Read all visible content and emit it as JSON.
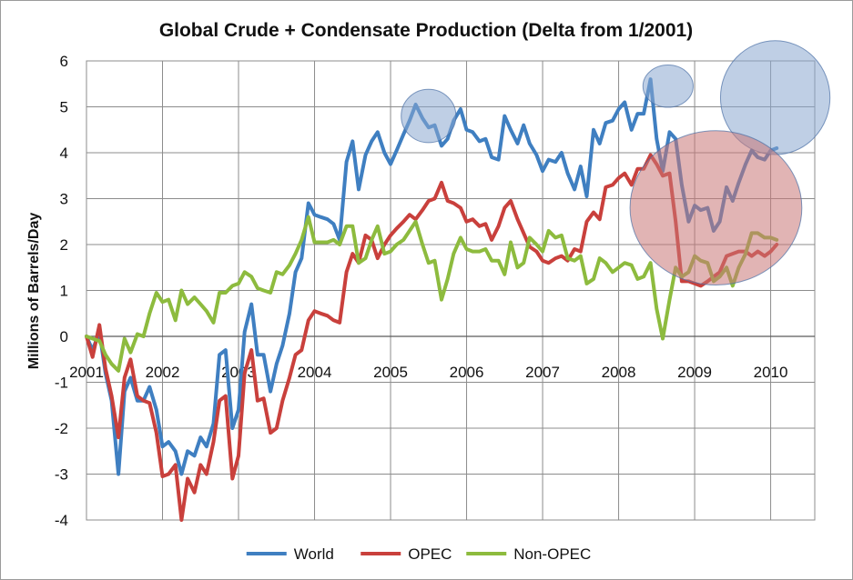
{
  "chart_data": {
    "type": "line",
    "title": "Global Crude + Condensate Production (Delta from 1/2001)",
    "ylabel": "Millions of Barrels/Day",
    "xlabel": "",
    "ylim": [
      -4,
      6
    ],
    "yticks": [
      -4,
      -3,
      -2,
      -1,
      0,
      1,
      2,
      3,
      4,
      5,
      6
    ],
    "xlim": [
      2001,
      2010.58
    ],
    "xticks": [
      "2001",
      "2002",
      "2003",
      "2004",
      "2005",
      "2006",
      "2007",
      "2008",
      "2009",
      "2010"
    ],
    "grid": true,
    "legend": "bottom",
    "series": [
      {
        "name": "World",
        "color": "#3f7fc1",
        "x": [
          2001.0,
          2001.08,
          2001.17,
          2001.25,
          2001.33,
          2001.42,
          2001.5,
          2001.58,
          2001.67,
          2001.75,
          2001.83,
          2001.92,
          2002.0,
          2002.08,
          2002.17,
          2002.25,
          2002.33,
          2002.42,
          2002.5,
          2002.58,
          2002.67,
          2002.75,
          2002.83,
          2002.92,
          2003.0,
          2003.08,
          2003.17,
          2003.25,
          2003.33,
          2003.42,
          2003.5,
          2003.58,
          2003.67,
          2003.75,
          2003.83,
          2003.92,
          2004.0,
          2004.08,
          2004.17,
          2004.25,
          2004.33,
          2004.42,
          2004.5,
          2004.58,
          2004.67,
          2004.75,
          2004.83,
          2004.92,
          2005.0,
          2005.08,
          2005.17,
          2005.25,
          2005.33,
          2005.42,
          2005.5,
          2005.58,
          2005.67,
          2005.75,
          2005.83,
          2005.92,
          2006.0,
          2006.08,
          2006.17,
          2006.25,
          2006.33,
          2006.42,
          2006.5,
          2006.58,
          2006.67,
          2006.75,
          2006.83,
          2006.92,
          2007.0,
          2007.08,
          2007.17,
          2007.25,
          2007.33,
          2007.42,
          2007.5,
          2007.58,
          2007.67,
          2007.75,
          2007.83,
          2007.92,
          2008.0,
          2008.08,
          2008.17,
          2008.25,
          2008.33,
          2008.42,
          2008.5,
          2008.58,
          2008.67,
          2008.75,
          2008.83,
          2008.92,
          2009.0,
          2009.08,
          2009.17,
          2009.25,
          2009.33,
          2009.42,
          2009.5,
          2009.58,
          2009.67,
          2009.75,
          2009.83,
          2009.92,
          2010.0,
          2010.08
        ],
        "values": [
          0.0,
          -0.3,
          0.1,
          -0.8,
          -1.4,
          -3.0,
          -1.2,
          -0.9,
          -1.4,
          -1.4,
          -1.1,
          -1.6,
          -2.4,
          -2.3,
          -2.5,
          -3.0,
          -2.5,
          -2.6,
          -2.2,
          -2.4,
          -1.9,
          -0.4,
          -0.3,
          -2.0,
          -1.6,
          0.1,
          0.7,
          -0.4,
          -0.4,
          -1.2,
          -0.6,
          -0.2,
          0.5,
          1.4,
          1.7,
          2.9,
          2.65,
          2.6,
          2.55,
          2.45,
          2.1,
          3.8,
          4.25,
          3.2,
          3.95,
          4.25,
          4.45,
          4.0,
          3.75,
          4.05,
          4.4,
          4.7,
          5.05,
          4.75,
          4.55,
          4.6,
          4.15,
          4.3,
          4.7,
          4.95,
          4.5,
          4.45,
          4.25,
          4.3,
          3.9,
          3.85,
          4.8,
          4.5,
          4.2,
          4.6,
          4.2,
          3.95,
          3.6,
          3.85,
          3.8,
          4.0,
          3.55,
          3.2,
          3.7,
          3.05,
          4.5,
          4.2,
          4.65,
          4.7,
          4.95,
          5.1,
          4.5,
          4.85,
          4.85,
          5.6,
          4.3,
          3.6,
          4.45,
          4.3,
          3.3,
          2.5,
          2.85,
          2.75,
          2.8,
          2.3,
          2.5,
          3.25,
          2.95,
          3.35,
          3.75,
          4.05,
          3.9,
          3.85,
          4.05,
          4.1
        ]
      },
      {
        "name": "OPEC",
        "color": "#c9403c",
        "x": [
          2001.0,
          2001.08,
          2001.17,
          2001.25,
          2001.33,
          2001.42,
          2001.5,
          2001.58,
          2001.67,
          2001.75,
          2001.83,
          2001.92,
          2002.0,
          2002.08,
          2002.17,
          2002.25,
          2002.33,
          2002.42,
          2002.5,
          2002.58,
          2002.67,
          2002.75,
          2002.83,
          2002.92,
          2003.0,
          2003.08,
          2003.17,
          2003.25,
          2003.33,
          2003.42,
          2003.5,
          2003.58,
          2003.67,
          2003.75,
          2003.83,
          2003.92,
          2004.0,
          2004.08,
          2004.17,
          2004.25,
          2004.33,
          2004.42,
          2004.5,
          2004.58,
          2004.67,
          2004.75,
          2004.83,
          2004.92,
          2005.0,
          2005.08,
          2005.17,
          2005.25,
          2005.33,
          2005.42,
          2005.5,
          2005.58,
          2005.67,
          2005.75,
          2005.83,
          2005.92,
          2006.0,
          2006.08,
          2006.17,
          2006.25,
          2006.33,
          2006.42,
          2006.5,
          2006.58,
          2006.67,
          2006.75,
          2006.83,
          2006.92,
          2007.0,
          2007.08,
          2007.17,
          2007.25,
          2007.33,
          2007.42,
          2007.5,
          2007.58,
          2007.67,
          2007.75,
          2007.83,
          2007.92,
          2008.0,
          2008.08,
          2008.17,
          2008.25,
          2008.33,
          2008.42,
          2008.5,
          2008.58,
          2008.67,
          2008.75,
          2008.83,
          2008.92,
          2009.0,
          2009.08,
          2009.17,
          2009.25,
          2009.33,
          2009.42,
          2009.5,
          2009.58,
          2009.67,
          2009.75,
          2009.83,
          2009.92,
          2010.0,
          2010.08
        ],
        "values": [
          0.0,
          -0.45,
          0.25,
          -0.7,
          -1.3,
          -2.2,
          -0.9,
          -0.5,
          -1.3,
          -1.4,
          -1.45,
          -2.1,
          -3.05,
          -3.0,
          -2.8,
          -4.0,
          -3.1,
          -3.4,
          -2.8,
          -3.0,
          -2.3,
          -1.4,
          -1.3,
          -3.1,
          -2.6,
          -0.8,
          -0.3,
          -1.4,
          -1.35,
          -2.1,
          -2.0,
          -1.4,
          -0.9,
          -0.4,
          -0.3,
          0.35,
          0.55,
          0.5,
          0.45,
          0.35,
          0.3,
          1.4,
          1.8,
          1.6,
          2.2,
          2.1,
          1.7,
          2.0,
          2.2,
          2.35,
          2.5,
          2.65,
          2.55,
          2.75,
          2.95,
          3.0,
          3.35,
          2.95,
          2.9,
          2.8,
          2.5,
          2.55,
          2.4,
          2.45,
          2.1,
          2.4,
          2.8,
          2.95,
          2.55,
          2.25,
          1.95,
          1.85,
          1.65,
          1.6,
          1.7,
          1.75,
          1.65,
          1.9,
          1.85,
          2.5,
          2.7,
          2.55,
          3.25,
          3.3,
          3.45,
          3.55,
          3.3,
          3.65,
          3.65,
          3.95,
          3.75,
          3.5,
          3.55,
          2.5,
          1.2,
          1.2,
          1.15,
          1.1,
          1.2,
          1.3,
          1.4,
          1.75,
          1.8,
          1.85,
          1.85,
          1.75,
          1.85,
          1.75,
          1.85,
          2.0
        ]
      },
      {
        "name": "Non-OPEC",
        "color": "#8dbb3e",
        "x": [
          2001.0,
          2001.08,
          2001.17,
          2001.25,
          2001.33,
          2001.42,
          2001.5,
          2001.58,
          2001.67,
          2001.75,
          2001.83,
          2001.92,
          2002.0,
          2002.08,
          2002.17,
          2002.25,
          2002.33,
          2002.42,
          2002.5,
          2002.58,
          2002.67,
          2002.75,
          2002.83,
          2002.92,
          2003.0,
          2003.08,
          2003.17,
          2003.25,
          2003.33,
          2003.42,
          2003.5,
          2003.58,
          2003.67,
          2003.75,
          2003.83,
          2003.92,
          2004.0,
          2004.08,
          2004.17,
          2004.25,
          2004.33,
          2004.42,
          2004.5,
          2004.58,
          2004.67,
          2004.75,
          2004.83,
          2004.92,
          2005.0,
          2005.08,
          2005.17,
          2005.25,
          2005.33,
          2005.42,
          2005.5,
          2005.58,
          2005.67,
          2005.75,
          2005.83,
          2005.92,
          2006.0,
          2006.08,
          2006.17,
          2006.25,
          2006.33,
          2006.42,
          2006.5,
          2006.58,
          2006.67,
          2006.75,
          2006.83,
          2006.92,
          2007.0,
          2007.08,
          2007.17,
          2007.25,
          2007.33,
          2007.42,
          2007.5,
          2007.58,
          2007.67,
          2007.75,
          2007.83,
          2007.92,
          2008.0,
          2008.08,
          2008.17,
          2008.25,
          2008.33,
          2008.42,
          2008.5,
          2008.58,
          2008.67,
          2008.75,
          2008.83,
          2008.92,
          2009.0,
          2009.08,
          2009.17,
          2009.25,
          2009.33,
          2009.42,
          2009.5,
          2009.58,
          2009.67,
          2009.75,
          2009.83,
          2009.92,
          2010.0,
          2010.08
        ],
        "values": [
          0.0,
          -0.05,
          -0.1,
          -0.4,
          -0.6,
          -0.75,
          -0.05,
          -0.35,
          0.05,
          0.0,
          0.5,
          0.95,
          0.75,
          0.8,
          0.35,
          1.0,
          0.7,
          0.85,
          0.7,
          0.55,
          0.3,
          0.95,
          0.95,
          1.1,
          1.15,
          1.4,
          1.3,
          1.05,
          1.0,
          0.95,
          1.4,
          1.35,
          1.55,
          1.8,
          2.1,
          2.6,
          2.05,
          2.05,
          2.05,
          2.1,
          2.0,
          2.4,
          2.4,
          1.6,
          1.7,
          2.1,
          2.4,
          1.8,
          1.85,
          2.0,
          2.1,
          2.3,
          2.5,
          2.0,
          1.6,
          1.65,
          0.8,
          1.25,
          1.8,
          2.15,
          1.9,
          1.85,
          1.85,
          1.9,
          1.65,
          1.65,
          1.35,
          2.05,
          1.5,
          1.6,
          2.15,
          2.0,
          1.85,
          2.3,
          2.15,
          2.2,
          1.7,
          1.65,
          1.75,
          1.15,
          1.25,
          1.7,
          1.6,
          1.4,
          1.5,
          1.6,
          1.55,
          1.25,
          1.3,
          1.6,
          0.6,
          -0.05,
          0.8,
          1.5,
          1.3,
          1.4,
          1.75,
          1.65,
          1.6,
          1.2,
          1.3,
          1.5,
          1.1,
          1.5,
          1.8,
          2.25,
          2.25,
          2.15,
          2.15,
          2.1
        ]
      }
    ],
    "annotations": [
      {
        "type": "ellipse",
        "color": "#8aa8cf",
        "opacity": 0.55,
        "cx": 2005.5,
        "cy": 4.8,
        "rx": 0.36,
        "ry": 0.58
      },
      {
        "type": "ellipse",
        "color": "#8aa8cf",
        "opacity": 0.55,
        "cx": 2008.65,
        "cy": 5.45,
        "rx": 0.33,
        "ry": 0.46
      },
      {
        "type": "ellipse",
        "color": "#8aa8cf",
        "opacity": 0.55,
        "cx": 2010.06,
        "cy": 5.2,
        "rx": 0.72,
        "ry": 1.24
      },
      {
        "type": "ellipse",
        "color": "#c87777",
        "opacity": 0.55,
        "cx": 2009.28,
        "cy": 2.8,
        "rx": 1.13,
        "ry": 1.68
      }
    ]
  }
}
